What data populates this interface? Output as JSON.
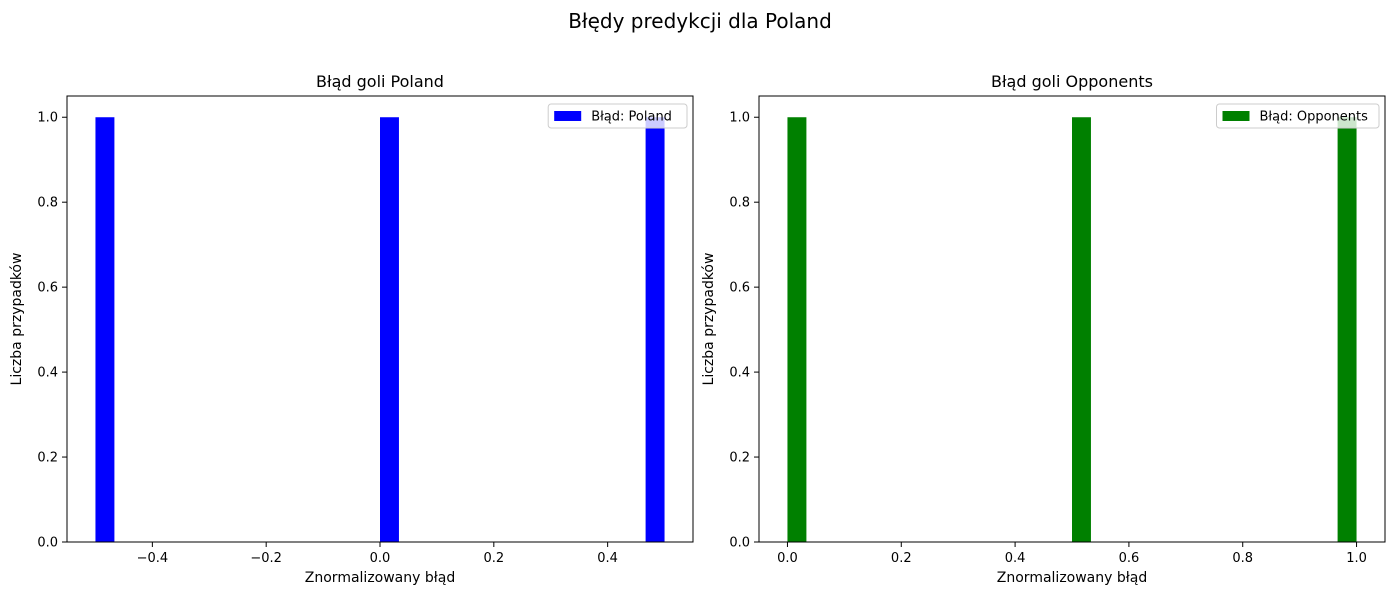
{
  "figure": {
    "suptitle": "Błędy predykcji dla Poland"
  },
  "chart_data": [
    {
      "type": "bar",
      "title": "Błąd goli Poland",
      "xlabel": "Znormalizowany błąd",
      "ylabel": "Liczba przypadków",
      "xlim": [
        -0.55,
        0.55
      ],
      "ylim": [
        0,
        1.05
      ],
      "xticks": [
        -0.4,
        -0.2,
        0.0,
        0.2,
        0.4
      ],
      "xtick_labels": [
        "−0.4",
        "−0.2",
        "0.0",
        "0.2",
        "0.4"
      ],
      "yticks": [
        0.0,
        0.2,
        0.4,
        0.6,
        0.8,
        1.0
      ],
      "ytick_labels": [
        "0.0",
        "0.2",
        "0.4",
        "0.6",
        "0.8",
        "1.0"
      ],
      "bar_width": 0.0333,
      "bars": [
        {
          "x_start": -0.5,
          "value": 1
        },
        {
          "x_start": 0.0,
          "value": 1
        },
        {
          "x_start": 0.4667,
          "value": 1
        }
      ],
      "series": [
        {
          "name": "Błąd: Poland",
          "color": "#0000ff"
        }
      ],
      "legend": "top-right",
      "grid": false
    },
    {
      "type": "bar",
      "title": "Błąd goli Opponents",
      "xlabel": "Znormalizowany błąd",
      "ylabel": "Liczba przypadków",
      "xlim": [
        -0.05,
        1.05
      ],
      "ylim": [
        0,
        1.05
      ],
      "xticks": [
        0.0,
        0.2,
        0.4,
        0.6,
        0.8,
        1.0
      ],
      "xtick_labels": [
        "0.0",
        "0.2",
        "0.4",
        "0.6",
        "0.8",
        "1.0"
      ],
      "yticks": [
        0.0,
        0.2,
        0.4,
        0.6,
        0.8,
        1.0
      ],
      "ytick_labels": [
        "0.0",
        "0.2",
        "0.4",
        "0.6",
        "0.8",
        "1.0"
      ],
      "bar_width": 0.0333,
      "bars": [
        {
          "x_start": 0.0,
          "value": 1
        },
        {
          "x_start": 0.5,
          "value": 1
        },
        {
          "x_start": 0.9667,
          "value": 1
        }
      ],
      "series": [
        {
          "name": "Błąd: Opponents",
          "color": "#008000"
        }
      ],
      "legend": "top-right",
      "grid": false
    }
  ]
}
